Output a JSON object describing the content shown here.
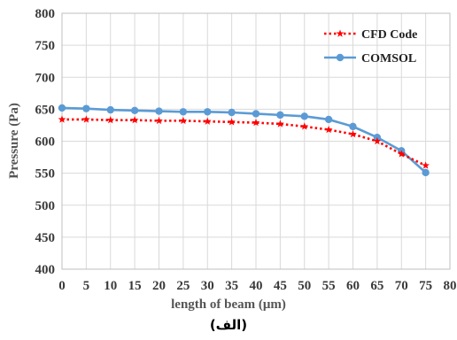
{
  "chart_data": {
    "type": "line",
    "xlabel": "length of beam (μm)",
    "ylabel": "Pressure (Pa)",
    "caption": "(الف)",
    "xlim": [
      0,
      80
    ],
    "ylim": [
      400,
      800
    ],
    "x_ticks": [
      "0",
      "5",
      "10",
      "15",
      "20",
      "25",
      "30",
      "35",
      "40",
      "45",
      "50",
      "55",
      "60",
      "65",
      "70",
      "75",
      "80"
    ],
    "y_ticks": [
      "400",
      "450",
      "500",
      "550",
      "600",
      "650",
      "700",
      "750",
      "800"
    ],
    "grid": true,
    "legend_position": "top-right",
    "series": [
      {
        "name": "CFD Code",
        "color": "#ff0000",
        "style": "dotted",
        "marker": "star",
        "x": [
          0,
          5,
          10,
          15,
          20,
          25,
          30,
          35,
          40,
          45,
          50,
          55,
          60,
          65,
          70,
          75
        ],
        "values": [
          634,
          634,
          633,
          633,
          632,
          632,
          631,
          630,
          629,
          627,
          623,
          618,
          611,
          600,
          580,
          562
        ]
      },
      {
        "name": "COMSOL",
        "color": "#5b9bd5",
        "style": "solid",
        "marker": "circle",
        "x": [
          0,
          5,
          10,
          15,
          20,
          25,
          30,
          35,
          40,
          45,
          50,
          55,
          60,
          65,
          70,
          75
        ],
        "values": [
          652,
          651,
          649,
          648,
          647,
          646,
          646,
          645,
          643,
          641,
          639,
          634,
          623,
          606,
          585,
          551
        ]
      }
    ]
  }
}
